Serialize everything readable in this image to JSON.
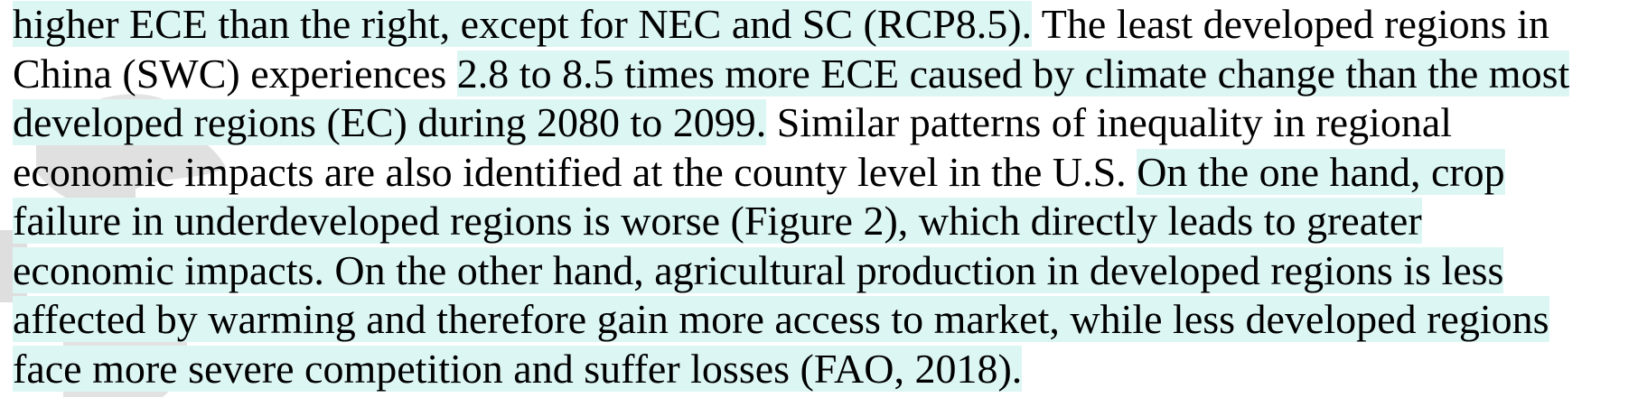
{
  "colors": {
    "highlight": "#dcf6f4",
    "text": "#000000",
    "watermark": "#d8d8d8"
  },
  "paragraph": {
    "lines": [
      {
        "segments": [
          {
            "text": "higher ECE than the right, except for NEC and SC (RCP8.5).",
            "highlight": true
          },
          {
            "text": " The least developed regions in",
            "highlight": false
          }
        ]
      },
      {
        "segments": [
          {
            "text": "China (SWC) experiences ",
            "highlight": false
          },
          {
            "text": "2.8 to 8.5 times more ECE caused by climate change than the most",
            "highlight": true
          }
        ]
      },
      {
        "segments": [
          {
            "text": "developed regions (EC) during 2080 to 2099.",
            "highlight": true
          },
          {
            "text": " Similar patterns of inequality in regional",
            "highlight": false
          }
        ]
      },
      {
        "segments": [
          {
            "text": "economic impacts are also identified at the county level in the U.S. ",
            "highlight": false
          },
          {
            "text": "On the one hand, crop",
            "highlight": true
          }
        ]
      },
      {
        "segments": [
          {
            "text": "failure in underdeveloped regions is worse (Figure 2), which directly leads to greater",
            "highlight": true
          }
        ]
      },
      {
        "segments": [
          {
            "text": "economic impacts. On the other hand, agricultural production in developed regions is less",
            "highlight": true
          }
        ]
      },
      {
        "segments": [
          {
            "text": "affected by warming and therefore gain more access to market, while less developed regions",
            "highlight": true
          }
        ]
      },
      {
        "segments": [
          {
            "text": "face more severe competition and suffer losses (FAO, 2018).",
            "highlight": true
          }
        ]
      }
    ]
  }
}
